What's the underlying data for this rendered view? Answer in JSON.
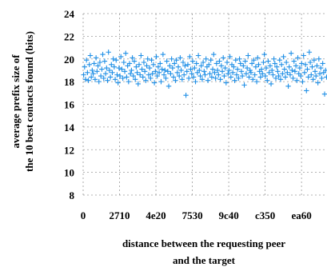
{
  "chart_data": {
    "type": "scatter",
    "title": "",
    "ylabel_lines": [
      "average prefix size of",
      "the 10 best contacts found (bits)"
    ],
    "xlabel_lines": [
      "distance between the requesting peer",
      "and the target"
    ],
    "xticks": [
      "0",
      "2710",
      "4e20",
      "7530",
      "9c40",
      "c350",
      "ea60"
    ],
    "xlim": [
      0,
      65535
    ],
    "ylim": [
      8,
      24
    ],
    "yticks": [
      8,
      10,
      12,
      14,
      16,
      18,
      20,
      22,
      24
    ],
    "grid": true,
    "marker": "+",
    "color": "#1f8fe6",
    "x_per_point": "even spacing across xlim",
    "y": [
      18.6,
      19.3,
      18.2,
      19.9,
      18.8,
      18.1,
      19.5,
      20.3,
      18.4,
      19.0,
      18.7,
      19.6,
      18.2,
      20.1,
      18.9,
      19.4,
      18.0,
      19.7,
      18.5,
      19.1,
      20.4,
      18.3,
      19.8,
      18.7,
      19.2,
      18.1,
      20.6,
      19.0,
      18.4,
      19.5,
      18.8,
      20.0,
      19.3,
      18.2,
      19.9,
      18.6,
      17.9,
      19.2,
      18.5,
      20.2,
      19.1,
      18.3,
      19.7,
      18.9,
      20.5,
      18.4,
      19.4,
      18.0,
      19.6,
      18.7,
      19.0,
      20.1,
      18.5,
      19.8,
      18.2,
      19.3,
      18.8,
      17.8,
      19.5,
      18.6,
      20.3,
      19.1,
      18.4,
      19.7,
      18.9,
      18.1,
      19.4,
      20.0,
      18.6,
      19.2,
      18.3,
      19.9,
      18.7,
      19.5,
      17.9,
      18.9,
      20.2,
      18.5,
      19.3,
      18.8,
      19.6,
      18.0,
      19.1,
      20.4,
      18.6,
      19.0,
      18.3,
      19.8,
      18.9,
      17.6,
      19.4,
      18.7,
      20.0,
      19.2,
      18.4,
      19.6,
      18.1,
      19.9,
      18.8,
      19.3,
      18.5,
      20.1,
      19.0,
      18.2,
      19.7,
      18.6,
      19.4,
      16.8,
      18.9,
      19.5,
      18.3,
      20.2,
      19.1,
      18.7,
      19.8,
      18.4,
      19.2,
      18.0,
      19.6,
      18.8,
      20.3,
      19.0,
      18.5,
      19.4,
      18.2,
      19.7,
      18.9,
      18.6,
      20.0,
      19.3,
      18.1,
      19.5,
      18.7,
      19.9,
      18.4,
      19.1,
      20.4,
      18.8,
      18.3,
      19.6,
      19.0,
      18.6,
      19.8,
      18.2,
      19.4,
      18.9,
      20.1,
      18.5,
      19.2,
      17.9,
      19.7,
      18.7,
      19.0,
      20.2,
      18.4,
      19.5,
      18.8,
      19.3,
      18.1,
      19.9,
      18.6,
      19.1,
      18.3,
      20.0,
      19.6,
      18.9,
      18.5,
      19.4,
      17.7,
      19.8,
      18.7,
      19.2,
      20.3,
      18.4,
      19.0,
      18.8,
      19.6,
      18.2,
      19.9,
      18.6,
      19.3,
      18.0,
      20.1,
      19.5,
      18.9,
      18.4,
      19.1,
      18.7,
      19.7,
      20.4,
      18.5,
      19.2,
      18.1,
      19.8,
      18.8,
      19.4,
      17.8,
      19.0,
      18.6,
      20.0,
      19.6,
      18.3,
      19.3,
      18.9,
      18.5,
      19.9,
      18.2,
      19.5,
      18.7,
      20.2,
      19.1,
      18.4,
      19.7,
      18.8,
      17.6,
      19.3,
      18.6,
      20.5,
      19.0,
      18.3,
      19.8,
      18.9,
      19.4,
      18.1,
      20.1,
      18.7,
      19.2,
      18.5,
      19.6,
      18.0,
      20.3,
      18.8,
      19.5,
      17.2,
      19.1,
      18.4,
      20.6,
      19.7,
      18.6,
      19.3,
      18.2,
      19.9,
      18.9,
      18.5,
      19.4,
      17.9,
      20.0,
      18.7,
      19.2,
      18.3,
      19.6,
      18.8,
      16.9,
      19.0,
      18.4
    ]
  }
}
